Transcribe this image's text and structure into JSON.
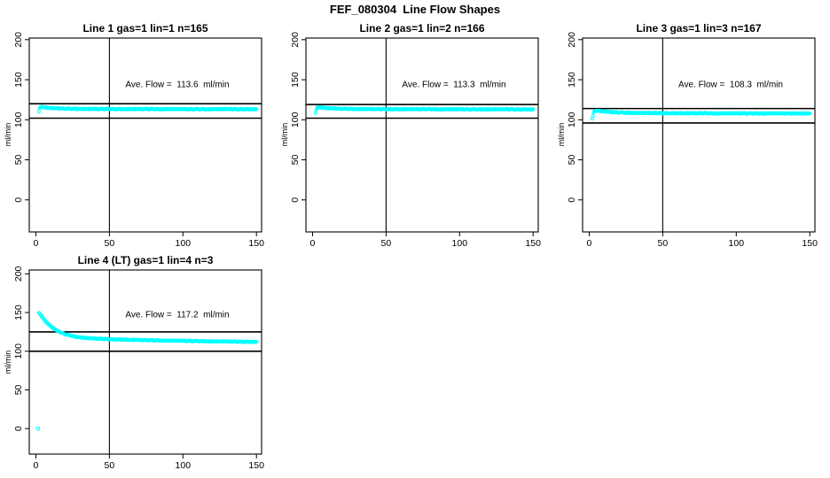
{
  "title": "FEF_080304  Line Flow Shapes",
  "colors": {
    "points": "#00ffff",
    "axis": "#000000",
    "background": "#ffffff",
    "text": "#000000"
  },
  "chart_data": [
    {
      "type": "scatter",
      "title": "Line 1 gas=1 lin=1 n=165",
      "annotation": "Ave. Flow =  113.6  ml/min",
      "ave_flow_ml_min": 113.6,
      "n": 165,
      "ylabel": "ml/min",
      "xticks": [
        0,
        50,
        100,
        150
      ],
      "yticks": [
        0,
        50,
        100,
        150,
        200
      ],
      "xlim": [
        -4.5,
        153.5
      ],
      "ylim": [
        -40,
        202
      ],
      "vline_x": 50,
      "hlines": [
        120,
        102
      ],
      "marker": "open-circle",
      "points": [
        [
          2,
          110.5
        ],
        [
          2.5,
          114.5
        ],
        [
          3,
          115.8
        ],
        [
          4,
          116
        ],
        [
          5,
          115.8
        ],
        [
          6,
          115.4
        ],
        [
          7,
          115.2
        ],
        [
          8,
          115
        ],
        [
          9,
          114.8
        ],
        [
          10,
          114.6
        ],
        [
          12,
          114.4
        ],
        [
          14,
          114.2
        ],
        [
          16,
          114.1
        ],
        [
          18,
          114
        ],
        [
          20,
          113.9
        ],
        [
          25,
          113.7
        ],
        [
          30,
          113.6
        ],
        [
          35,
          113.5
        ],
        [
          40,
          113.5
        ],
        [
          45,
          113.4
        ],
        [
          50,
          113.5
        ],
        [
          55,
          113.4
        ],
        [
          60,
          113.3
        ],
        [
          65,
          113.4
        ],
        [
          70,
          113.3
        ],
        [
          75,
          113.4
        ],
        [
          80,
          113.3
        ],
        [
          85,
          113.3
        ],
        [
          90,
          113.4
        ],
        [
          95,
          113.3
        ],
        [
          100,
          113.3
        ],
        [
          105,
          113.2
        ],
        [
          110,
          113.3
        ],
        [
          115,
          113.2
        ],
        [
          120,
          113.3
        ],
        [
          125,
          113.2
        ],
        [
          130,
          113.3
        ],
        [
          135,
          113.2
        ],
        [
          140,
          113.3
        ],
        [
          145,
          113.2
        ],
        [
          150,
          113.3
        ]
      ],
      "extra_points": []
    },
    {
      "type": "scatter",
      "title": "Line 2 gas=1 lin=2 n=166",
      "annotation": "Ave. Flow =  113.3  ml/min",
      "ave_flow_ml_min": 113.3,
      "n": 166,
      "ylabel": "ml/min",
      "xticks": [
        0,
        50,
        100,
        150
      ],
      "yticks": [
        0,
        50,
        100,
        150,
        200
      ],
      "xlim": [
        -4.5,
        153.5
      ],
      "ylim": [
        -40,
        202
      ],
      "vline_x": 50,
      "hlines": [
        119,
        102
      ],
      "marker": "open-circle",
      "points": [
        [
          2,
          109
        ],
        [
          2.5,
          112
        ],
        [
          3,
          114.8
        ],
        [
          4,
          115.6
        ],
        [
          5,
          115.6
        ],
        [
          6,
          115.3
        ],
        [
          7,
          115
        ],
        [
          8,
          114.8
        ],
        [
          9,
          114.6
        ],
        [
          10,
          114.5
        ],
        [
          12,
          114.3
        ],
        [
          14,
          114.1
        ],
        [
          16,
          114
        ],
        [
          18,
          113.9
        ],
        [
          20,
          113.8
        ],
        [
          25,
          113.6
        ],
        [
          30,
          113.5
        ],
        [
          35,
          113.4
        ],
        [
          40,
          113.4
        ],
        [
          45,
          113.3
        ],
        [
          50,
          113.3
        ],
        [
          55,
          113.3
        ],
        [
          60,
          113.2
        ],
        [
          65,
          113.3
        ],
        [
          70,
          113.2
        ],
        [
          75,
          113.2
        ],
        [
          80,
          113.2
        ],
        [
          85,
          113.1
        ],
        [
          90,
          113.2
        ],
        [
          95,
          113.1
        ],
        [
          100,
          113.1
        ],
        [
          105,
          113.1
        ],
        [
          110,
          113
        ],
        [
          115,
          113.1
        ],
        [
          120,
          113
        ],
        [
          125,
          113.1
        ],
        [
          130,
          113
        ],
        [
          135,
          113.1
        ],
        [
          140,
          113
        ],
        [
          145,
          113
        ],
        [
          150,
          113.1
        ]
      ],
      "extra_points": []
    },
    {
      "type": "scatter",
      "title": "Line 3 gas=1 lin=3 n=167",
      "annotation": "Ave. Flow =  108.3  ml/min",
      "ave_flow_ml_min": 108.3,
      "n": 167,
      "ylabel": "ml/min",
      "xticks": [
        0,
        50,
        100,
        150
      ],
      "yticks": [
        0,
        50,
        100,
        150,
        200
      ],
      "xlim": [
        -4.5,
        153.5
      ],
      "ylim": [
        -40,
        202
      ],
      "vline_x": 50,
      "hlines": [
        114,
        96
      ],
      "marker": "open-circle",
      "points": [
        [
          2,
          102
        ],
        [
          2.5,
          104.5
        ],
        [
          3,
          109.5
        ],
        [
          4,
          111
        ],
        [
          5,
          111.4
        ],
        [
          6,
          111.2
        ],
        [
          7,
          111
        ],
        [
          8,
          110.8
        ],
        [
          9,
          110.5
        ],
        [
          10,
          110.3
        ],
        [
          12,
          110
        ],
        [
          14,
          109.7
        ],
        [
          16,
          109.5
        ],
        [
          18,
          109.3
        ],
        [
          20,
          109.1
        ],
        [
          25,
          108.8
        ],
        [
          30,
          108.6
        ],
        [
          35,
          108.5
        ],
        [
          40,
          108.4
        ],
        [
          45,
          108.3
        ],
        [
          50,
          108.3
        ],
        [
          55,
          108.2
        ],
        [
          60,
          108.2
        ],
        [
          65,
          108.1
        ],
        [
          70,
          108.2
        ],
        [
          75,
          108.1
        ],
        [
          80,
          108.1
        ],
        [
          85,
          108
        ],
        [
          90,
          108.1
        ],
        [
          95,
          108
        ],
        [
          100,
          108
        ],
        [
          105,
          108
        ],
        [
          110,
          107.9
        ],
        [
          115,
          108
        ],
        [
          120,
          107.9
        ],
        [
          125,
          108
        ],
        [
          130,
          107.9
        ],
        [
          135,
          107.9
        ],
        [
          140,
          108
        ],
        [
          145,
          107.9
        ],
        [
          150,
          108
        ]
      ],
      "extra_points": []
    },
    {
      "type": "scatter",
      "title": "Line 4 (LT) gas=1 lin=4 n=3",
      "annotation": "Ave. Flow =  117.2  ml/min",
      "ave_flow_ml_min": 117.2,
      "n": 3,
      "ylabel": "ml/min",
      "xticks": [
        0,
        50,
        100,
        150
      ],
      "yticks": [
        0,
        50,
        100,
        150,
        200
      ],
      "xlim": [
        -4.5,
        153.5
      ],
      "ylim": [
        -33,
        205
      ],
      "vline_x": 50,
      "hlines": [
        125,
        100
      ],
      "marker": "open-circle",
      "points": [
        [
          2,
          150
        ],
        [
          2.5,
          149
        ],
        [
          3,
          147.5
        ],
        [
          4,
          145
        ],
        [
          5,
          142.5
        ],
        [
          6,
          140
        ],
        [
          7,
          137.8
        ],
        [
          8,
          135.8
        ],
        [
          9,
          134
        ],
        [
          10,
          132.3
        ],
        [
          11,
          130.8
        ],
        [
          12,
          129.4
        ],
        [
          13,
          128.2
        ],
        [
          14,
          127
        ],
        [
          15,
          126
        ],
        [
          16,
          125
        ],
        [
          17,
          124.2
        ],
        [
          18,
          123.4
        ],
        [
          19,
          122.7
        ],
        [
          20,
          122
        ],
        [
          22,
          120.9
        ],
        [
          24,
          120
        ],
        [
          26,
          119.2
        ],
        [
          28,
          118.5
        ],
        [
          30,
          118
        ],
        [
          33,
          117.4
        ],
        [
          36,
          116.9
        ],
        [
          40,
          116.4
        ],
        [
          45,
          115.9
        ],
        [
          50,
          115.5
        ],
        [
          55,
          115.2
        ],
        [
          60,
          115
        ],
        [
          65,
          114.7
        ],
        [
          70,
          114.5
        ],
        [
          75,
          114.3
        ],
        [
          80,
          114.1
        ],
        [
          85,
          113.9
        ],
        [
          90,
          113.7
        ],
        [
          95,
          113.5
        ],
        [
          100,
          113.4
        ],
        [
          105,
          113.2
        ],
        [
          110,
          113.1
        ],
        [
          115,
          112.9
        ],
        [
          120,
          112.8
        ],
        [
          125,
          112.6
        ],
        [
          130,
          112.5
        ],
        [
          135,
          112.4
        ],
        [
          140,
          112.3
        ],
        [
          145,
          112.2
        ],
        [
          150,
          112.1
        ]
      ],
      "extra_points": [
        [
          1.5,
          0
        ]
      ]
    }
  ]
}
